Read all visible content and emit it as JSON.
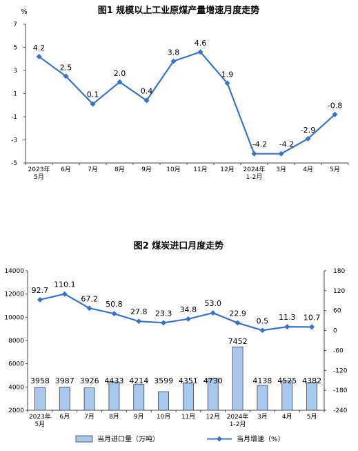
{
  "charts": [
    {
      "title": "图1  规模以上工业原煤产量增速月度走势",
      "unit": "%",
      "categories": [
        [
          "2023年",
          "5月"
        ],
        [
          "6月"
        ],
        [
          "7月"
        ],
        [
          "8月"
        ],
        [
          "9月"
        ],
        [
          "10月"
        ],
        [
          "11月"
        ],
        [
          "12月"
        ],
        [
          "2024年",
          "1-2月"
        ],
        [
          "3月"
        ],
        [
          "4月"
        ],
        [
          "5月"
        ]
      ],
      "y_ticks": [
        "7",
        "5",
        "3",
        "1",
        "-1",
        "-3",
        "-5"
      ],
      "values": [
        4.2,
        2.5,
        0.1,
        2.0,
        0.4,
        3.8,
        4.6,
        1.9,
        -4.2,
        -4.2,
        -2.9,
        -0.8
      ],
      "value_labels": [
        "4.2",
        "2.5",
        "0.1",
        "2.0",
        "0.4",
        "3.8",
        "4.6",
        "1.9",
        "-4.2",
        "-4.2",
        "-2.9",
        "-0.8"
      ],
      "color": "#3a73c4"
    },
    {
      "title": "图2  煤炭进口月度走势",
      "categories": [
        [
          "2023年",
          "5月"
        ],
        [
          "6月"
        ],
        [
          "7月"
        ],
        [
          "8月"
        ],
        [
          "9月"
        ],
        [
          "10月"
        ],
        [
          "11月"
        ],
        [
          "12月"
        ],
        [
          "2024年",
          "1-2月"
        ],
        [
          "3月"
        ],
        [
          "4月"
        ],
        [
          "5月"
        ]
      ],
      "left_ticks": [
        "14000",
        "12000",
        "10000",
        "8000",
        "6000",
        "4000",
        "2000"
      ],
      "right_ticks": [
        "180",
        "120",
        "60",
        "0",
        "-60",
        "-120",
        "-180",
        "-240"
      ],
      "bars": [
        3958,
        3987,
        3926,
        4433,
        4214,
        3599,
        4351,
        4730,
        7452,
        4138,
        4525,
        4382
      ],
      "bar_labels": [
        "3958",
        "3987",
        "3926",
        "4433",
        "4214",
        "3599",
        "4351",
        "4730",
        "7452",
        "4138",
        "4525",
        "4382"
      ],
      "growth": [
        92.7,
        110.1,
        67.2,
        50.8,
        27.8,
        23.3,
        34.8,
        53.0,
        22.9,
        0.5,
        11.3,
        10.7
      ],
      "growth_labels": [
        "92.7",
        "110.1",
        "67.2",
        "50.8",
        "27.8",
        "23.3",
        "34.8",
        "53.0",
        "22.9",
        "0.5",
        "11.3",
        "10.7"
      ],
      "legend": {
        "bars": "当月进口量（万吨）",
        "line": "当月增速（%）"
      },
      "bar_color": "#a9c8ee",
      "line_color": "#3a73c4"
    }
  ],
  "chart_data": [
    {
      "type": "line",
      "title": "图1  规模以上工业原煤产量增速月度走势",
      "ylabel": "%",
      "categories": [
        "2023年5月",
        "6月",
        "7月",
        "8月",
        "9月",
        "10月",
        "11月",
        "12月",
        "2024年1-2月",
        "3月",
        "4月",
        "5月"
      ],
      "series": [
        {
          "values": [
            4.2,
            2.5,
            0.1,
            2.0,
            0.4,
            3.8,
            4.6,
            1.9,
            -4.2,
            -4.2,
            -2.9,
            -0.8
          ]
        }
      ],
      "ylim": [
        -5,
        7
      ]
    },
    {
      "type": "bar",
      "title": "图2  煤炭进口月度走势",
      "categories": [
        "2023年5月",
        "6月",
        "7月",
        "8月",
        "9月",
        "10月",
        "11月",
        "12月",
        "2024年1-2月",
        "3月",
        "4月",
        "5月"
      ],
      "series": [
        {
          "name": "当月进口量（万吨）",
          "type": "bar",
          "axis": "left",
          "values": [
            3958,
            3987,
            3926,
            4433,
            4214,
            3599,
            4351,
            4730,
            7452,
            4138,
            4525,
            4382
          ]
        },
        {
          "name": "当月增速（%）",
          "type": "line",
          "axis": "right",
          "values": [
            92.7,
            110.1,
            67.2,
            50.8,
            27.8,
            23.3,
            34.8,
            53.0,
            22.9,
            0.5,
            11.3,
            10.7
          ]
        }
      ],
      "ylim_left": [
        2000,
        14000
      ],
      "ylim_right": [
        -240,
        180
      ],
      "legend": "bottom"
    }
  ]
}
